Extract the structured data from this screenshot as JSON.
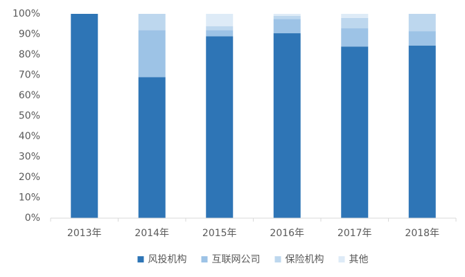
{
  "chart_data": {
    "type": "stacked_bar",
    "categories": [
      "2013年",
      "2014年",
      "2015年",
      "2016年",
      "2017年",
      "2018年"
    ],
    "series": [
      {
        "name": "风投机构",
        "color": "#2e75b6",
        "values": [
          100,
          69,
          89,
          90.5,
          84,
          84.5
        ]
      },
      {
        "name": "互联网公司",
        "color": "#9dc3e6",
        "values": [
          0,
          23,
          3,
          7,
          9,
          7
        ]
      },
      {
        "name": "保险机构",
        "color": "#bdd7ee",
        "values": [
          0,
          8,
          2,
          1.5,
          5,
          8.5
        ]
      },
      {
        "name": "其他",
        "color": "#deebf7",
        "values": [
          0,
          0,
          6,
          1,
          2,
          0
        ]
      }
    ],
    "ylim": [
      0,
      100
    ],
    "yticks": [
      {
        "value": 0,
        "label": "0%"
      },
      {
        "value": 10,
        "label": "10%"
      },
      {
        "value": 20,
        "label": "20%"
      },
      {
        "value": 30,
        "label": "30%"
      },
      {
        "value": 40,
        "label": "40%"
      },
      {
        "value": 50,
        "label": "50%"
      },
      {
        "value": 60,
        "label": "60%"
      },
      {
        "value": 70,
        "label": "70%"
      },
      {
        "value": 80,
        "label": "80%"
      },
      {
        "value": 90,
        "label": "90%"
      },
      {
        "value": 100,
        "label": "100%"
      }
    ],
    "grid": false,
    "legend": "bottom"
  }
}
